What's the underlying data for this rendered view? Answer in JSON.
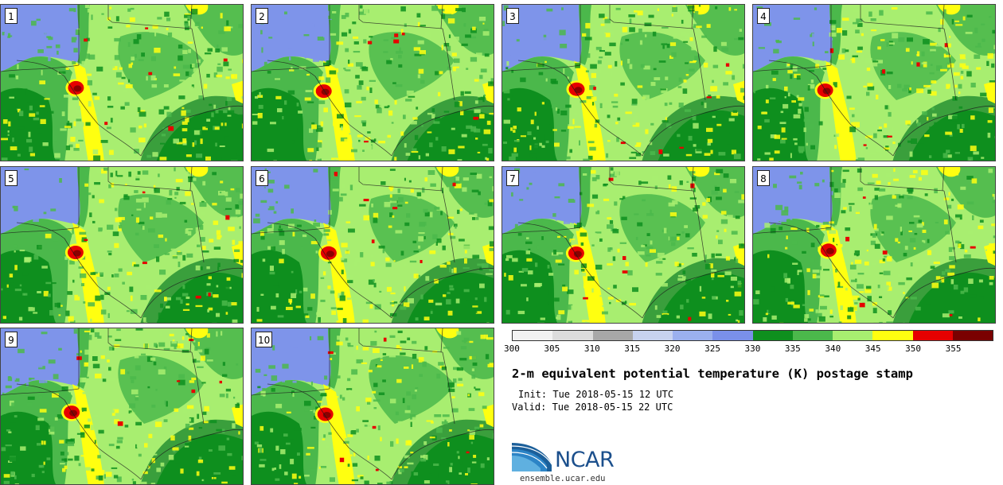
{
  "stamps": [
    {
      "label": "1"
    },
    {
      "label": "2"
    },
    {
      "label": "3"
    },
    {
      "label": "4"
    },
    {
      "label": "5"
    },
    {
      "label": "6"
    },
    {
      "label": "7"
    },
    {
      "label": "8"
    },
    {
      "label": "9"
    },
    {
      "label": "10"
    }
  ],
  "colorbar": {
    "labels": [
      "300",
      "305",
      "310",
      "315",
      "320",
      "325",
      "330",
      "335",
      "340",
      "345",
      "350",
      "355"
    ],
    "colors": [
      "#f2f2f2",
      "#dcdcdc",
      "#a8a8a8",
      "#c7d2ef",
      "#9bb0ee",
      "#7a90ea",
      "#0e8f1e",
      "#4bb84b",
      "#a8ee70",
      "#ffff10",
      "#e60000",
      "#7a0000"
    ]
  },
  "title": "2-m equivalent potential temperature (K) postage stamp",
  "init": "Init: Tue 2018-05-15 12 UTC",
  "valid": "Valid: Tue 2018-05-15 22 UTC",
  "logo": {
    "text": "NCAR",
    "url": "ensemble.ucar.edu"
  },
  "map_colors": {
    "ocean": "#3a9f3c",
    "plains_blue": "#7e94ea",
    "light_green": "#a8ee70",
    "mid_green": "#4bb84b",
    "dark_green": "#0e8f1e",
    "yellow": "#ffff10",
    "red": "#e60000",
    "dark_red": "#8b0000"
  }
}
